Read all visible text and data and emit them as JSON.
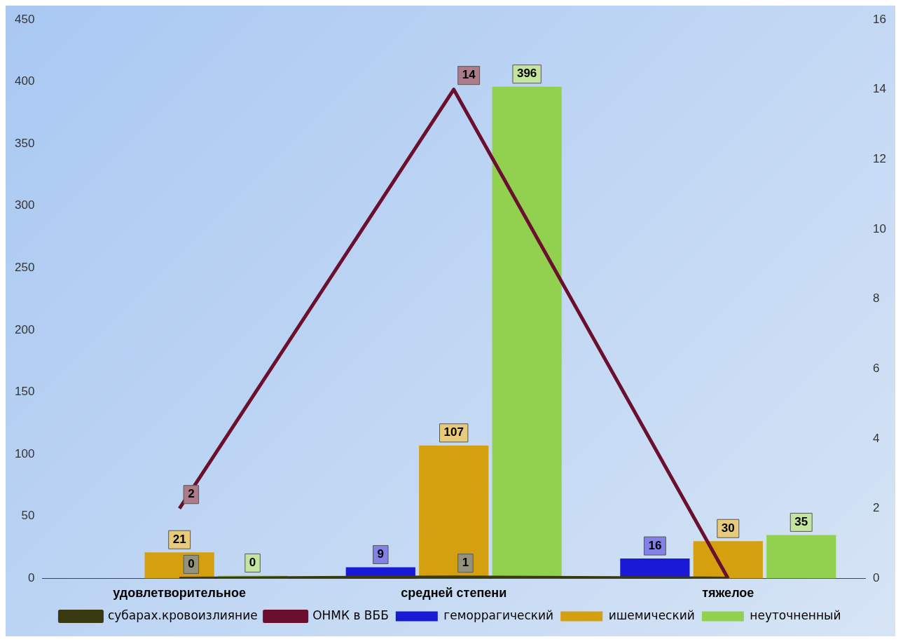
{
  "chart_data": {
    "type": "bar",
    "categories": [
      "удовлетворительное",
      "средней степени",
      "тяжелое"
    ],
    "series": [
      {
        "name": "геморрагический",
        "color": "#1a1ad6",
        "values": [
          null,
          9,
          16
        ],
        "value_labels": [
          null,
          "9",
          "16"
        ]
      },
      {
        "name": "ишемический",
        "color": "#d4a00f",
        "values": [
          21,
          107,
          30
        ],
        "value_labels": [
          "21",
          "107",
          "30"
        ]
      },
      {
        "name": "неуточненный",
        "color": "#92d050",
        "values": [
          0,
          396,
          35
        ],
        "value_labels": [
          "0",
          "396",
          "35"
        ]
      },
      {
        "name": "субарах.кровоизлияние",
        "type": "line",
        "color": "#3a3a12",
        "values": [
          0,
          1,
          0
        ],
        "value_labels": [
          "0",
          "1",
          null
        ]
      },
      {
        "name": "ОНМК в ВББ",
        "type": "line",
        "axis": "y2",
        "color": "#6b0f2e",
        "values": [
          2,
          14,
          0
        ],
        "value_labels": [
          "2",
          "14",
          null
        ]
      }
    ],
    "ylim": [
      0,
      450
    ],
    "yticks": [
      0,
      50,
      100,
      150,
      200,
      250,
      300,
      350,
      400,
      450
    ],
    "y2lim": [
      0,
      16
    ],
    "y2ticks": [
      0,
      2,
      4,
      6,
      8,
      10,
      12,
      14,
      16
    ],
    "grid": false,
    "legend": "bottom"
  }
}
